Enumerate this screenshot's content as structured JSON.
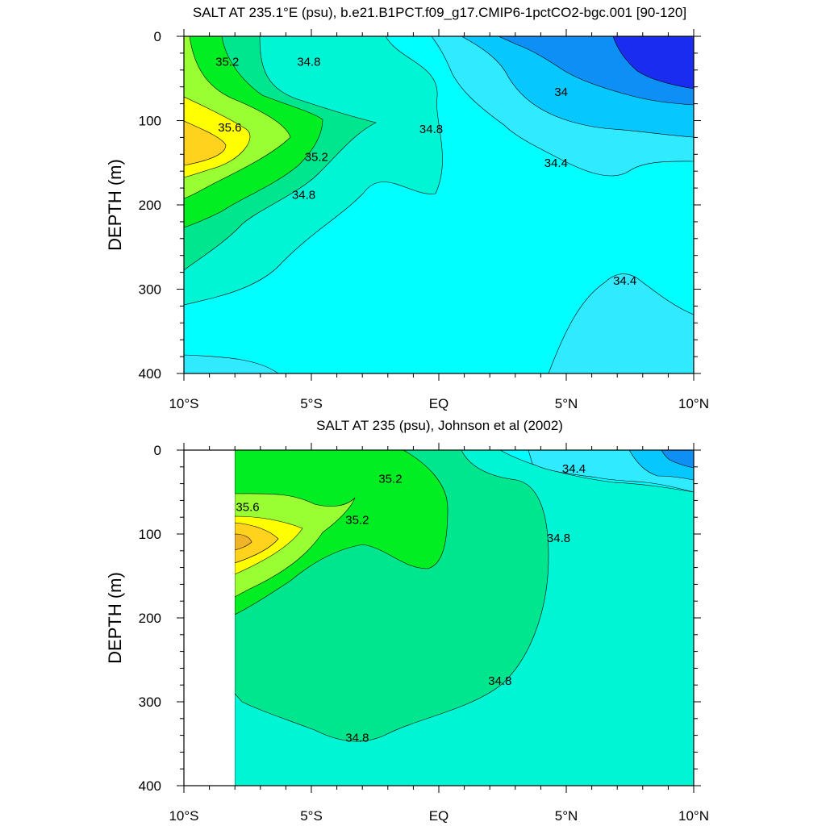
{
  "colors": {
    "c33_8": "#1a2cf0",
    "c34_0": "#0d8ff5",
    "c34_2": "#06c8ff",
    "c34_4": "#30eaff",
    "c34_6": "#00ffff",
    "c34_8": "#00f5d5",
    "c35_0": "#00e68f",
    "c35_2": "#00ee22",
    "c35_4": "#99ff33",
    "c35_6": "#ffff00",
    "c35_8": "#ffd21e",
    "c36_0": "#f0b428"
  },
  "chart_data": [
    {
      "type": "contour",
      "title": "SALT AT 235.1°E (psu), b.e21.B1PCT.f09_g17.CMIP6-1pctCO2-bgc.001 [90-120]",
      "ylabel": "DEPTH (m)",
      "xlabel": "",
      "x_ticks": [
        "10°S",
        "5°S",
        "EQ",
        "5°N",
        "10°N"
      ],
      "x_range": [
        -10,
        10
      ],
      "y_ticks": [
        "0",
        "100",
        "200",
        "300",
        "400"
      ],
      "y_range": [
        0,
        400
      ],
      "y_inverted": true,
      "units": "psu",
      "contour_labels": [
        {
          "text": "35.2",
          "lat": -8.3,
          "depth": 30
        },
        {
          "text": "34.8",
          "lat": -5.1,
          "depth": 30
        },
        {
          "text": "35.6",
          "lat": -8.2,
          "depth": 108
        },
        {
          "text": "35.2",
          "lat": -4.8,
          "depth": 143
        },
        {
          "text": "34.8",
          "lat": -5.3,
          "depth": 188
        },
        {
          "text": "34.8",
          "lat": -0.3,
          "depth": 110
        },
        {
          "text": "34",
          "lat": 4.8,
          "depth": 66
        },
        {
          "text": "34.4",
          "lat": 4.6,
          "depth": 150
        },
        {
          "text": "34.4",
          "lat": 7.3,
          "depth": 290
        }
      ]
    },
    {
      "type": "contour",
      "title": "SALT AT 235 (psu), Johnson et al (2002)",
      "ylabel": "DEPTH (m)",
      "xlabel": "",
      "x_ticks": [
        "10°S",
        "5°S",
        "EQ",
        "5°N",
        "10°N"
      ],
      "x_range": [
        -10,
        10
      ],
      "y_ticks": [
        "0",
        "100",
        "200",
        "300",
        "400"
      ],
      "y_range": [
        0,
        400
      ],
      "y_inverted": true,
      "units": "psu",
      "data_x_range": [
        -8,
        10
      ],
      "contour_labels": [
        {
          "text": "35.2",
          "lat": -1.9,
          "depth": 34
        },
        {
          "text": "35.6",
          "lat": -7.5,
          "depth": 68
        },
        {
          "text": "35.2",
          "lat": -3.2,
          "depth": 83
        },
        {
          "text": "34.4",
          "lat": 5.3,
          "depth": 22
        },
        {
          "text": "34.8",
          "lat": 4.7,
          "depth": 105
        },
        {
          "text": "34.8",
          "lat": 2.4,
          "depth": 275
        },
        {
          "text": "34.8",
          "lat": -3.2,
          "depth": 343
        }
      ]
    }
  ]
}
